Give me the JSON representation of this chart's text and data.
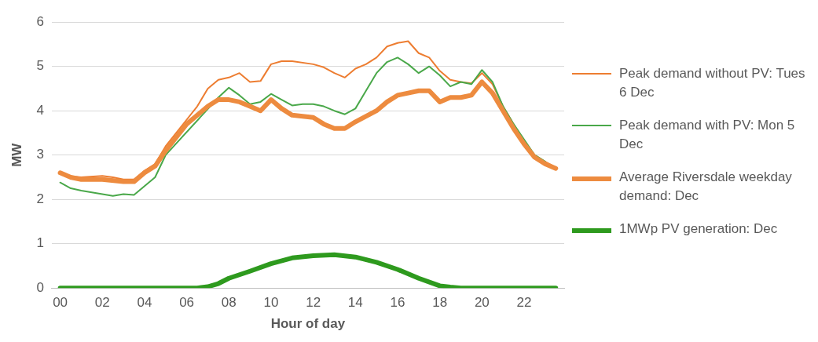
{
  "chart_data": {
    "type": "line",
    "xlabel": "Hour of day",
    "ylabel": "MW",
    "xlim": [
      -0.4,
      23.9
    ],
    "xticks": [
      {
        "value": 0,
        "label": "00"
      },
      {
        "value": 2,
        "label": "02"
      },
      {
        "value": 4,
        "label": "04"
      },
      {
        "value": 6,
        "label": "06"
      },
      {
        "value": 8,
        "label": "08"
      },
      {
        "value": 10,
        "label": "10"
      },
      {
        "value": 12,
        "label": "12"
      },
      {
        "value": 14,
        "label": "14"
      },
      {
        "value": 16,
        "label": "16"
      },
      {
        "value": 18,
        "label": "18"
      },
      {
        "value": 20,
        "label": "20"
      },
      {
        "value": 22,
        "label": "22"
      }
    ],
    "ylim": [
      0,
      6
    ],
    "yticks": [
      0,
      1,
      2,
      3,
      4,
      5,
      6
    ],
    "grid": "y",
    "legend": "right",
    "marker": "none",
    "line_style": "solid",
    "series": [
      {
        "name": "Peak demand without PV: Tues 6 Dec",
        "color": "#ed7d31",
        "x": [
          0,
          0.5,
          1,
          2,
          2.5,
          3,
          3.5,
          4,
          4.5,
          5,
          6,
          6.5,
          7,
          7.5,
          8,
          8.5,
          9,
          9.5,
          10,
          10.5,
          11,
          12,
          12.5,
          13,
          13.5,
          14,
          14.5,
          15,
          15.5,
          16,
          16.5,
          17,
          17.5,
          18,
          18.5,
          19,
          19.5,
          20,
          20.5,
          21,
          21.5,
          22,
          22.5,
          23,
          23.5
        ],
        "values": [
          2.6,
          2.52,
          2.5,
          2.53,
          2.5,
          2.45,
          2.45,
          2.65,
          2.8,
          3.2,
          3.8,
          4.1,
          4.5,
          4.7,
          4.75,
          4.85,
          4.65,
          4.67,
          5.05,
          5.12,
          5.12,
          5.05,
          4.98,
          4.85,
          4.75,
          4.95,
          5.05,
          5.2,
          5.45,
          5.53,
          5.57,
          5.3,
          5.2,
          4.9,
          4.7,
          4.65,
          4.62,
          4.85,
          4.6,
          4.1,
          3.7,
          3.3,
          3.0,
          2.85,
          2.72
        ]
      },
      {
        "name": "Peak demand with PV: Mon 5 Dec",
        "color": "#4aa84a",
        "x": [
          0,
          0.5,
          1,
          2,
          2.5,
          3,
          3.5,
          4,
          4.5,
          5,
          6,
          7,
          7.5,
          8,
          8.5,
          9,
          9.5,
          10,
          10.5,
          11,
          11.5,
          12,
          12.5,
          13,
          13.5,
          14,
          14.5,
          15,
          15.5,
          16,
          16.5,
          17,
          17.5,
          18,
          18.5,
          19,
          19.5,
          20,
          20.5,
          21,
          21.5,
          22,
          22.5,
          23
        ],
        "values": [
          2.38,
          2.25,
          2.2,
          2.12,
          2.08,
          2.12,
          2.1,
          2.3,
          2.5,
          3.0,
          null,
          null,
          4.3,
          4.52,
          4.35,
          4.15,
          4.2,
          4.38,
          4.25,
          4.12,
          4.15,
          4.15,
          4.1,
          4.0,
          3.92,
          4.05,
          4.45,
          4.85,
          5.1,
          5.2,
          5.05,
          4.85,
          5.0,
          4.8,
          4.55,
          4.65,
          4.6,
          4.92,
          4.65,
          4.1,
          3.7,
          null,
          3.0,
          2.85
        ]
      },
      {
        "name": "Average Riversdale weekday demand: Dec",
        "color": "#ed8b3f",
        "x": [
          0,
          0.5,
          1,
          2,
          3,
          3.5,
          4,
          4.5,
          5,
          6,
          7,
          7.5,
          8,
          8.5,
          9,
          9.5,
          10,
          10.5,
          11,
          12,
          12.5,
          13,
          13.5,
          14,
          15,
          15.5,
          16,
          16.5,
          17,
          17.5,
          18,
          18.5,
          19,
          19.5,
          20,
          20.5,
          21,
          21.5,
          22,
          22.5,
          23,
          23.5
        ],
        "values": [
          2.6,
          2.5,
          2.45,
          2.45,
          2.4,
          2.4,
          2.6,
          2.75,
          3.1,
          3.7,
          4.1,
          4.25,
          4.25,
          4.2,
          4.1,
          4.0,
          4.25,
          4.05,
          3.9,
          3.85,
          3.7,
          3.6,
          3.6,
          3.75,
          4.0,
          4.2,
          4.35,
          4.4,
          4.45,
          4.45,
          4.2,
          4.3,
          4.3,
          4.35,
          4.65,
          4.4,
          4.0,
          3.6,
          3.25,
          2.95,
          2.8,
          2.7
        ]
      },
      {
        "name": "1MWp PV generation: Dec",
        "color": "#2e9a1e",
        "x": [
          0,
          1,
          2,
          3,
          4,
          5,
          6,
          6.5,
          7,
          7.5,
          8,
          9,
          10,
          11,
          12,
          13,
          14,
          15,
          16,
          17,
          18,
          18.5,
          19,
          20,
          21,
          22,
          23,
          23.5
        ],
        "values": [
          0,
          0,
          0,
          0,
          0,
          0,
          0,
          0,
          0.03,
          0.1,
          0.22,
          0.38,
          0.55,
          0.68,
          0.73,
          0.75,
          0.7,
          0.58,
          0.42,
          0.22,
          0.05,
          0.02,
          0,
          0,
          0,
          0,
          0,
          0
        ]
      }
    ]
  }
}
